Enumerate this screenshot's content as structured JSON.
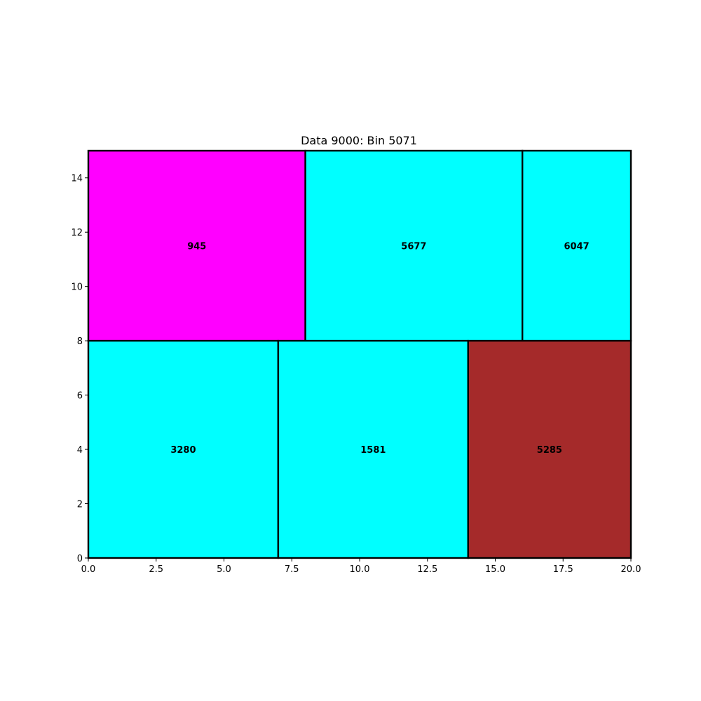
{
  "chart_data": {
    "type": "treemap",
    "title": "Data 9000: Bin 5071",
    "xlabel": "",
    "ylabel": "",
    "xlim": [
      0,
      20
    ],
    "ylim": [
      0,
      15
    ],
    "grid": false,
    "xticks": [
      0,
      2.5,
      5,
      7.5,
      10,
      12.5,
      15,
      17.5,
      20
    ],
    "xtick_labels": [
      "0.0",
      "2.5",
      "5.0",
      "7.5",
      "10.0",
      "12.5",
      "15.0",
      "17.5",
      "20.0"
    ],
    "yticks": [
      0,
      2,
      4,
      6,
      8,
      10,
      12,
      14
    ],
    "ytick_labels": [
      "0",
      "2",
      "4",
      "6",
      "8",
      "10",
      "12",
      "14"
    ],
    "rectangles": [
      {
        "label": "945",
        "x": 0,
        "y": 8,
        "width": 8,
        "height": 7,
        "color": "#ff00ff"
      },
      {
        "label": "5677",
        "x": 8,
        "y": 8,
        "width": 8,
        "height": 7,
        "color": "#00ffff"
      },
      {
        "label": "6047",
        "x": 16,
        "y": 8,
        "width": 4,
        "height": 7,
        "color": "#00ffff"
      },
      {
        "label": "3280",
        "x": 0,
        "y": 0,
        "width": 7,
        "height": 8,
        "color": "#00ffff"
      },
      {
        "label": "1581",
        "x": 7,
        "y": 0,
        "width": 7,
        "height": 8,
        "color": "#00ffff"
      },
      {
        "label": "5285",
        "x": 14,
        "y": 0,
        "width": 6,
        "height": 8,
        "color": "#a52a2a"
      }
    ]
  }
}
